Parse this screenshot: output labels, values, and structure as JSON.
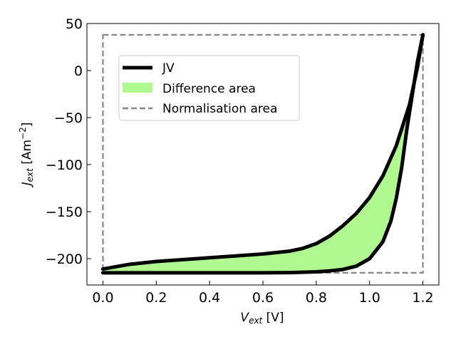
{
  "chart_data": {
    "type": "line",
    "xlabel": {
      "main": "V",
      "sub": "ext",
      "unit": " [V]"
    },
    "ylabel": {
      "main": "J",
      "sub": "ext",
      "unit": " [Am",
      "exp": "−2",
      "close": "]"
    },
    "xlim": [
      -0.06,
      1.26
    ],
    "ylim": [
      -228,
      50
    ],
    "xticks": [
      0.0,
      0.2,
      0.4,
      0.6,
      0.8,
      1.0,
      1.2
    ],
    "xtick_labels": [
      "0.0",
      "0.2",
      "0.4",
      "0.6",
      "0.8",
      "1.0",
      "1.2"
    ],
    "yticks": [
      50,
      0,
      -50,
      -100,
      -150,
      -200
    ],
    "ytick_labels": [
      "50",
      "0",
      "−50",
      "−100",
      "−150",
      "−200"
    ],
    "legend_position": "upper-left",
    "series": [
      {
        "name": "JV",
        "role": "lower-branch",
        "color": "#000000",
        "x": [
          0.0,
          0.2,
          0.4,
          0.6,
          0.7,
          0.8,
          0.85,
          0.9,
          0.95,
          1.0,
          1.05,
          1.08,
          1.1,
          1.12,
          1.14,
          1.16,
          1.18,
          1.2
        ],
        "y": [
          -215,
          -215,
          -215,
          -215,
          -214.8,
          -214,
          -213,
          -211.5,
          -208,
          -200,
          -182,
          -160,
          -136,
          -104,
          -62,
          -26,
          10,
          38
        ]
      },
      {
        "name": "JV",
        "role": "upper-branch",
        "color": "#000000",
        "x": [
          0.0,
          0.1,
          0.2,
          0.3,
          0.4,
          0.5,
          0.6,
          0.7,
          0.75,
          0.8,
          0.85,
          0.9,
          0.95,
          1.0,
          1.05,
          1.1,
          1.15,
          1.18,
          1.2
        ],
        "y": [
          -211,
          -206,
          -203,
          -201,
          -199,
          -197,
          -195,
          -192,
          -189,
          -184,
          -176,
          -165,
          -152,
          -135,
          -112,
          -80,
          -36,
          4,
          38
        ]
      }
    ],
    "fill": {
      "name": "Difference area",
      "color": "#b0f890"
    },
    "normalisation_box": {
      "name": "Normalisation area",
      "x": [
        0.0,
        1.2
      ],
      "y": [
        -215,
        38
      ],
      "color": "#888888"
    },
    "legend": [
      "JV",
      "Difference area",
      "Normalisation area"
    ],
    "grid": false
  }
}
